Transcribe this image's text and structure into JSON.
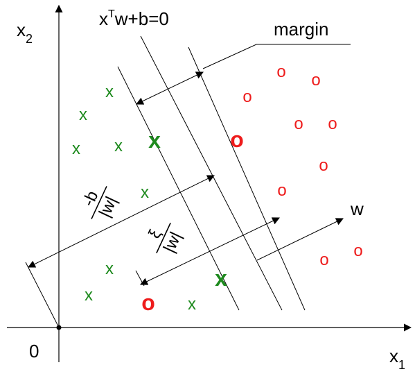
{
  "axes": {
    "x_label": "x",
    "x_sub": "1",
    "y_label": "x",
    "y_sub": "2",
    "origin_label": "0"
  },
  "hyperplane_label": {
    "part1": "x",
    "superscript": "T",
    "part2": "w+b=0"
  },
  "margin_label": "margin",
  "w_label": "w",
  "offset_label": {
    "numerator": "-b",
    "denominator": "|w|"
  },
  "slack_label": {
    "numerator": "ξ",
    "denominator": "|w|"
  },
  "class_symbols": {
    "positive": "x",
    "negative": "o"
  },
  "colors": {
    "positive_class": "#1e8a1e",
    "negative_class": "#ee1c1c",
    "lines": "#000000"
  }
}
